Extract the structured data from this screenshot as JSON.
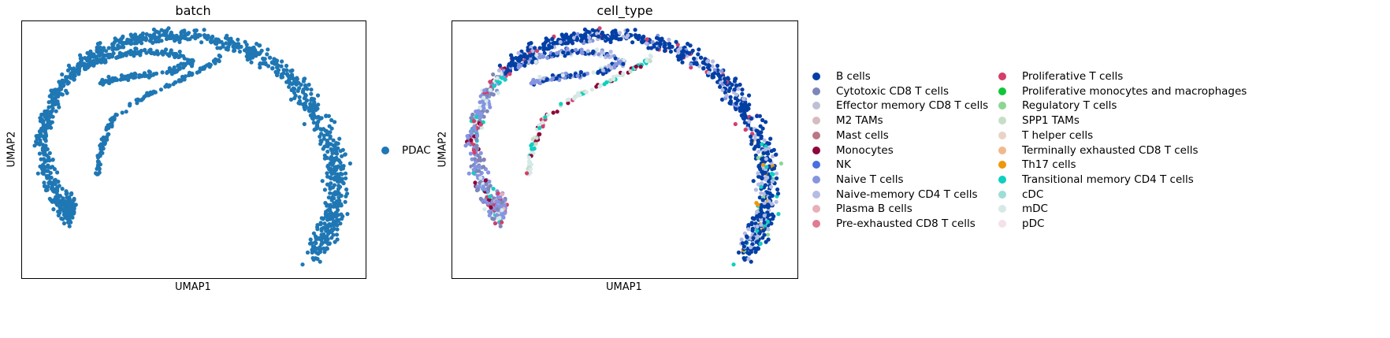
{
  "chart_data": [
    {
      "type": "scatter",
      "title": "batch",
      "xlabel": "UMAP1",
      "ylabel": "UMAP2",
      "grid": false,
      "legend_position": "right",
      "series": [
        {
          "name": "PDAC",
          "color": "#1f77b4"
        }
      ]
    },
    {
      "type": "scatter",
      "title": "cell_type",
      "xlabel": "UMAP1",
      "ylabel": "UMAP2",
      "grid": false,
      "legend_position": "right",
      "legend_columns": 2,
      "series": [
        {
          "name": "B cells",
          "color": "#023fa5"
        },
        {
          "name": "Cytotoxic CD8 T cells",
          "color": "#7d87b9"
        },
        {
          "name": "Effector memory CD8 T cells",
          "color": "#bec1d4"
        },
        {
          "name": "M2 TAMs",
          "color": "#d6bcc0"
        },
        {
          "name": "Mast cells",
          "color": "#bb7784"
        },
        {
          "name": "Monocytes",
          "color": "#8e063b"
        },
        {
          "name": "NK",
          "color": "#4a6fe3"
        },
        {
          "name": "Naive T cells",
          "color": "#8595e1"
        },
        {
          "name": "Naive-memory CD4 T cells",
          "color": "#b5bbe3"
        },
        {
          "name": "Plasma B cells",
          "color": "#e6afb9"
        },
        {
          "name": "Pre-exhausted CD8 T cells",
          "color": "#e07b91"
        },
        {
          "name": "Proliferative T cells",
          "color": "#d33f6a"
        },
        {
          "name": "Proliferative monocytes and macrophages",
          "color": "#11c638"
        },
        {
          "name": "Regulatory T cells",
          "color": "#8dd593"
        },
        {
          "name": "SPP1 TAMs",
          "color": "#c6dec7"
        },
        {
          "name": "T helper cells",
          "color": "#ead3c6"
        },
        {
          "name": "Terminally exhausted CD8 T cells",
          "color": "#f0b98d"
        },
        {
          "name": "Th17 cells",
          "color": "#ef9708"
        },
        {
          "name": "Transitional memory CD4 T cells",
          "color": "#0fcfc0"
        },
        {
          "name": "cDC",
          "color": "#9cded6"
        },
        {
          "name": "mDC",
          "color": "#d5eae7"
        },
        {
          "name": "pDC",
          "color": "#f3e1eb"
        }
      ]
    }
  ]
}
